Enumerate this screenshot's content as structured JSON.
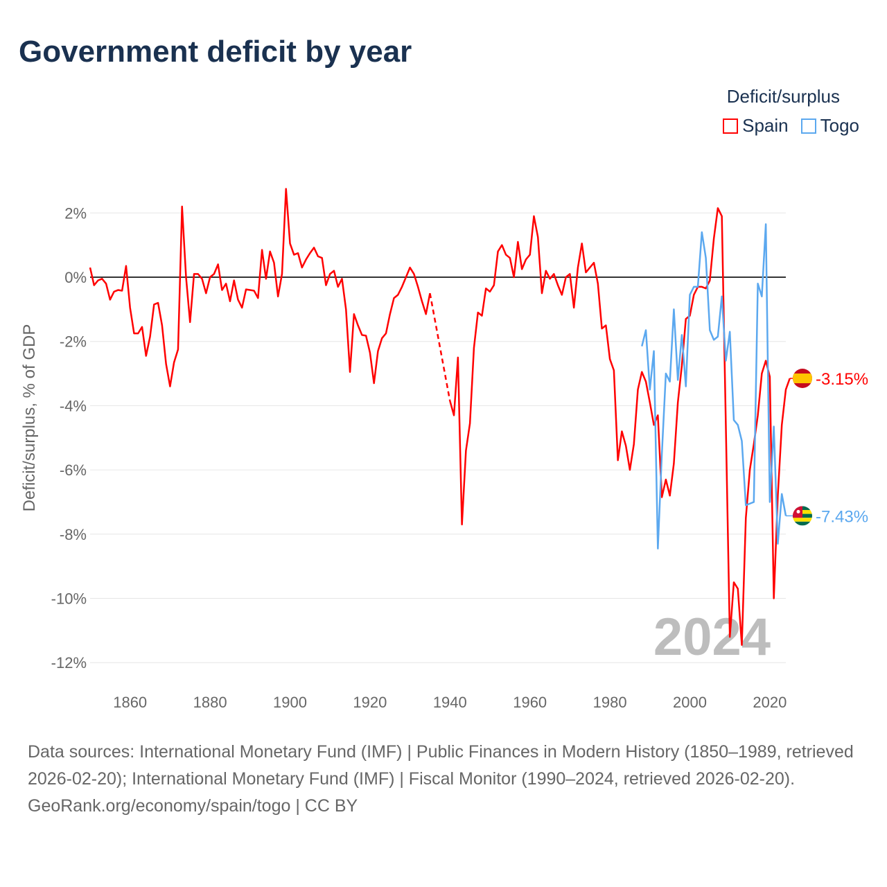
{
  "title": "Government deficit by year",
  "legend": {
    "title": "Deficit/surplus",
    "items": [
      {
        "label": "Spain",
        "color": "#ff0000"
      },
      {
        "label": "Togo",
        "color": "#5ba8ef"
      }
    ]
  },
  "footer": {
    "sources": "Data sources: International Monetary Fund (IMF) | Public Finances in Modern History (1850–1989, retrieved 2026-02-20); International Monetary Fund (IMF) | Fiscal Monitor (1990–2024, retrieved 2026-02-20).",
    "credit": "GeoRank.org/economy/spain/togo | CC BY"
  },
  "chart_data": {
    "type": "line",
    "title": "Government deficit by year",
    "ylabel": "Deficit/surplus, % of GDP",
    "xlim": [
      1850,
      2024
    ],
    "ylim": [
      -12.5,
      3
    ],
    "x_ticks": [
      {
        "v": 1860,
        "label": "1860"
      },
      {
        "v": 1880,
        "label": "1880"
      },
      {
        "v": 1900,
        "label": "1900"
      },
      {
        "v": 1920,
        "label": "1920"
      },
      {
        "v": 1940,
        "label": "1940"
      },
      {
        "v": 1960,
        "label": "1960"
      },
      {
        "v": 1980,
        "label": "1980"
      },
      {
        "v": 2000,
        "label": "2000"
      },
      {
        "v": 2020,
        "label": "2020"
      }
    ],
    "y_ticks": [
      {
        "v": 2,
        "label": "2%"
      },
      {
        "v": 0,
        "label": "0%"
      },
      {
        "v": -2,
        "label": "-2%"
      },
      {
        "v": -4,
        "label": "-4%"
      },
      {
        "v": -6,
        "label": "-6%"
      },
      {
        "v": -8,
        "label": "-8%"
      },
      {
        "v": -10,
        "label": "-10%"
      },
      {
        "v": -12,
        "label": "-12%"
      }
    ],
    "year_label": "2024",
    "series": [
      {
        "name": "Spain",
        "color": "#ff0000",
        "start": 1850,
        "end_label": "-3.15%",
        "values": [
          0.3,
          -0.25,
          -0.1,
          -0.05,
          -0.2,
          -0.7,
          -0.45,
          -0.4,
          -0.42,
          0.35,
          -0.95,
          -1.75,
          -1.75,
          -1.55,
          -2.45,
          -1.85,
          -0.85,
          -0.8,
          -1.5,
          -2.7,
          -3.4,
          -2.65,
          -2.25,
          2.2,
          0.0,
          -1.4,
          0.1,
          0.1,
          -0.05,
          -0.5,
          0.0,
          0.1,
          0.4,
          -0.4,
          -0.2,
          -0.75,
          -0.1,
          -0.7,
          -0.95,
          -0.38,
          -0.4,
          -0.42,
          -0.65,
          0.85,
          -0.05,
          0.8,
          0.45,
          -0.6,
          0.1,
          2.75,
          1.05,
          0.7,
          0.75,
          0.3,
          0.55,
          0.75,
          0.92,
          0.65,
          0.6,
          -0.25,
          0.1,
          0.2,
          -0.3,
          -0.05,
          -1.0,
          -2.95,
          -1.15,
          -1.5,
          -1.8,
          -1.82,
          -2.35,
          -3.3,
          -2.3,
          -1.9,
          -1.75,
          -1.15,
          -0.65,
          -0.55,
          -0.3,
          0.0,
          0.3,
          0.1,
          -0.3,
          -0.75,
          -1.15,
          -0.5,
          null,
          null,
          null,
          null,
          -3.85,
          -4.3,
          -2.5,
          -7.7,
          -5.4,
          -4.55,
          -2.2,
          -1.1,
          -1.2,
          -0.35,
          -0.45,
          -0.25,
          0.8,
          1.0,
          0.7,
          0.6,
          0.0,
          1.1,
          0.25,
          0.55,
          0.7,
          1.9,
          1.25,
          -0.5,
          0.2,
          -0.05,
          0.1,
          -0.25,
          -0.55,
          0.0,
          0.1,
          -0.95,
          0.3,
          1.05,
          0.15,
          0.3,
          0.45,
          -0.2,
          -1.6,
          -1.5,
          -2.55,
          -2.9,
          -5.7,
          -4.8,
          -5.25,
          -6.0,
          -5.2,
          -3.5,
          -2.95,
          -3.25,
          -3.9,
          -4.6,
          -4.3,
          -6.85,
          -6.3,
          -6.8,
          -5.8,
          -3.9,
          -2.75,
          -1.3,
          -1.2,
          -0.55,
          -0.3,
          -0.3,
          -0.35,
          -0.1,
          1.2,
          2.15,
          1.9,
          -4.6,
          -11.2,
          -9.5,
          -9.7,
          -11.45,
          -7.5,
          -6.0,
          -5.2,
          -4.3,
          -3.0,
          -2.6,
          -3.1,
          -10.0,
          -6.8,
          -4.6,
          -3.5,
          -3.15
        ]
      },
      {
        "name": "Togo",
        "color": "#5ba8ef",
        "start": 1988,
        "end_label": "-7.43%",
        "values": [
          -2.15,
          -1.65,
          -3.5,
          -2.3,
          -8.45,
          -5.5,
          -3.0,
          -3.25,
          -1.0,
          -3.2,
          -1.8,
          -3.4,
          -0.55,
          -0.3,
          -0.3,
          1.4,
          0.6,
          -1.65,
          -1.95,
          -1.85,
          -0.6,
          -2.6,
          -1.7,
          -4.45,
          -4.6,
          -5.1,
          -7.1,
          -7.05,
          -7.0,
          -0.2,
          -0.6,
          1.65,
          -7.0,
          -4.65,
          -8.3,
          -6.75,
          -7.43
        ]
      }
    ]
  }
}
